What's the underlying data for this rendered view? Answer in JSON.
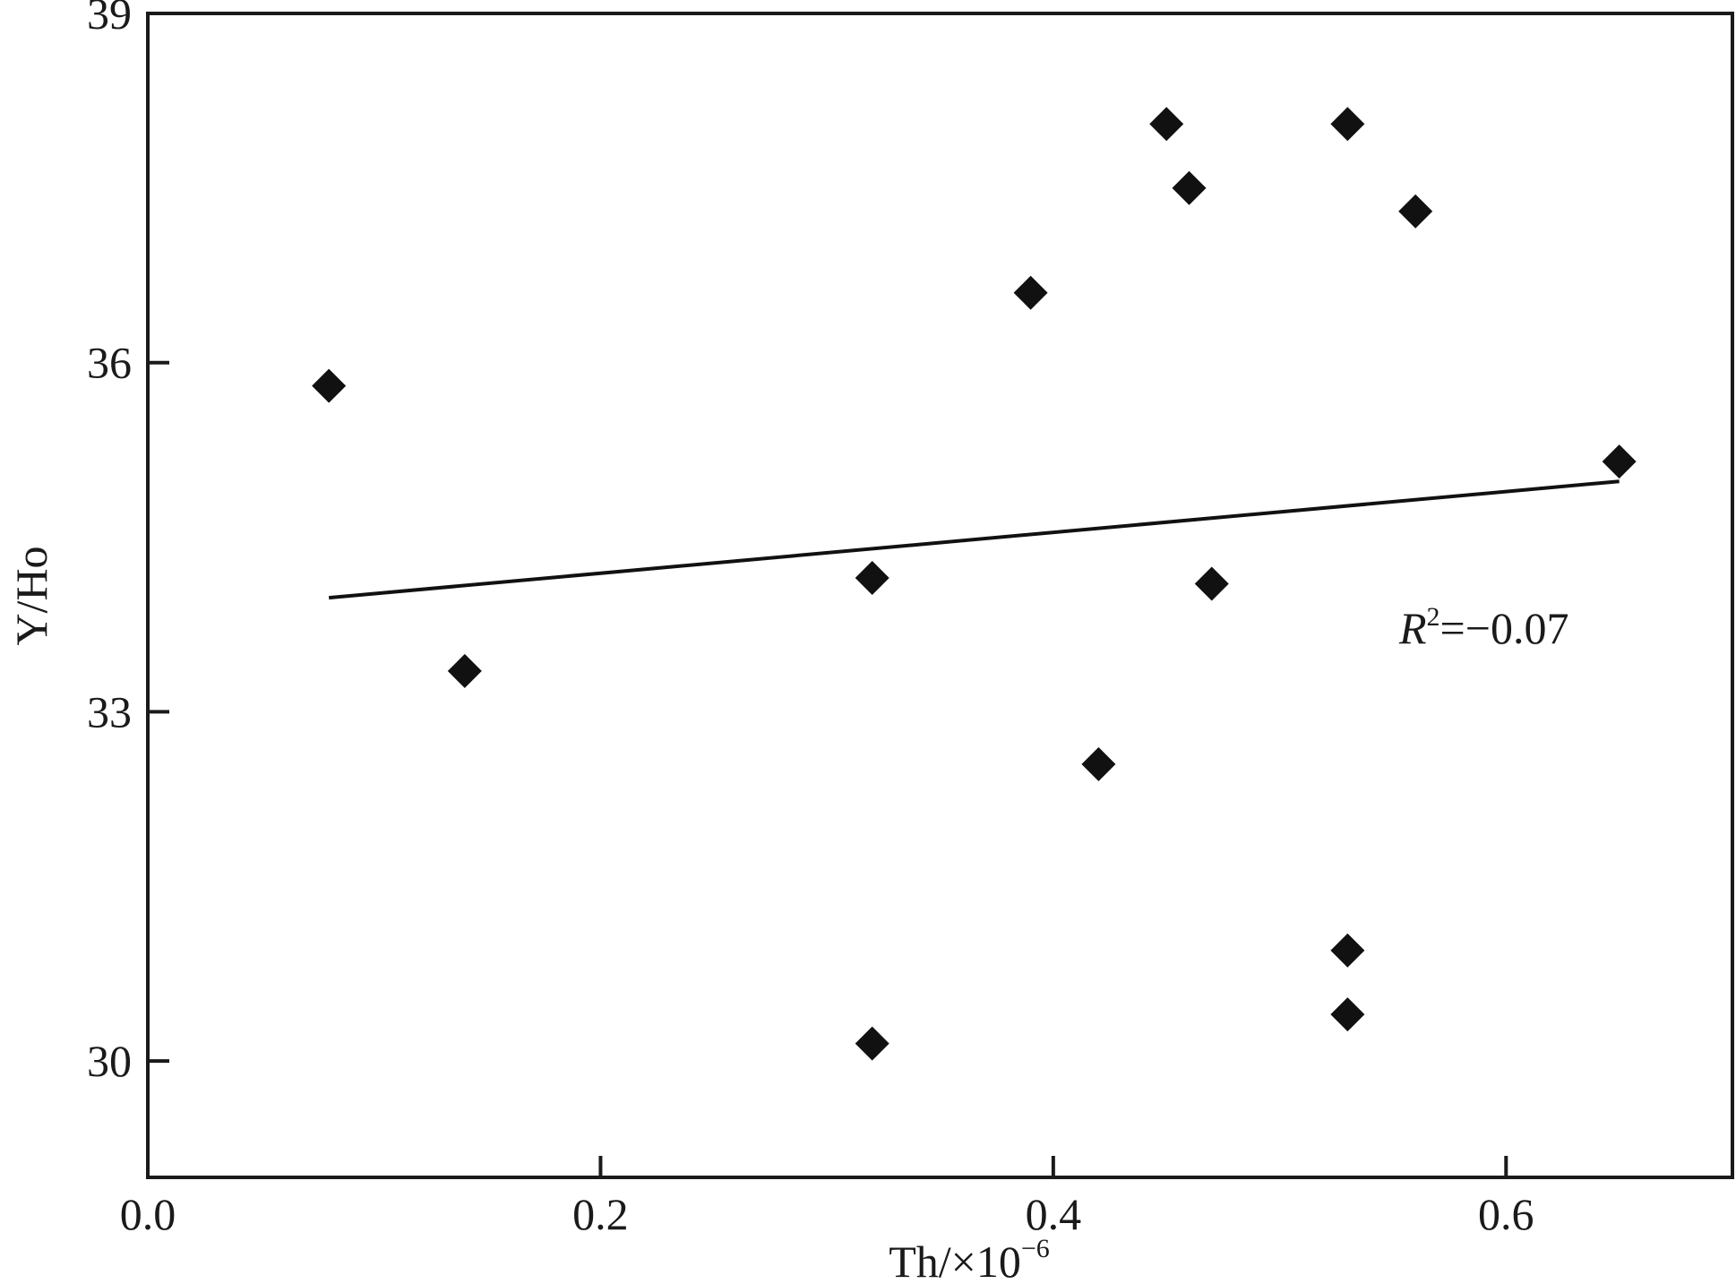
{
  "chart_data": {
    "type": "scatter",
    "title": "",
    "xlabel": "Th/×10",
    "xlabel_exponent": "−6",
    "ylabel": "Y/Ho",
    "xlim": [
      0.0,
      0.7
    ],
    "ylim": [
      29.0,
      39.0
    ],
    "x_ticks": [
      0.0,
      0.2,
      0.4,
      0.6
    ],
    "x_tick_labels": [
      "0.0",
      "0.2",
      "0.4",
      "0.6"
    ],
    "y_ticks": [
      30,
      33,
      36,
      39
    ],
    "y_tick_labels": [
      "30",
      "33",
      "36",
      "39"
    ],
    "grid": false,
    "marker": "diamond",
    "marker_color": "#111111",
    "points": [
      {
        "x": 0.08,
        "y": 35.8
      },
      {
        "x": 0.14,
        "y": 33.35
      },
      {
        "x": 0.32,
        "y": 34.15
      },
      {
        "x": 0.32,
        "y": 30.15
      },
      {
        "x": 0.39,
        "y": 36.6
      },
      {
        "x": 0.42,
        "y": 32.55
      },
      {
        "x": 0.45,
        "y": 38.05
      },
      {
        "x": 0.46,
        "y": 37.5
      },
      {
        "x": 0.47,
        "y": 34.1
      },
      {
        "x": 0.53,
        "y": 38.05
      },
      {
        "x": 0.53,
        "y": 30.95
      },
      {
        "x": 0.53,
        "y": 30.4
      },
      {
        "x": 0.56,
        "y": 37.3
      },
      {
        "x": 0.65,
        "y": 35.15
      }
    ],
    "trendline": {
      "x": [
        0.08,
        0.65
      ],
      "y": [
        33.98,
        34.98
      ]
    },
    "annotation": {
      "base": "R",
      "sup": "2",
      "rest": "=−0.07"
    }
  }
}
